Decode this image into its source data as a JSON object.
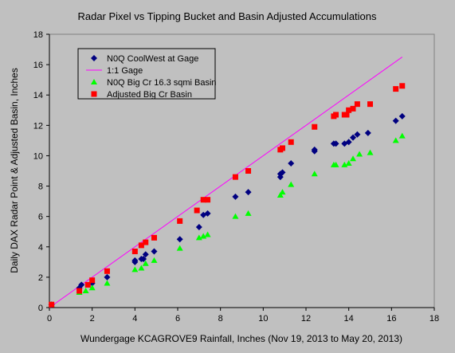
{
  "chart_data": {
    "type": "scatter",
    "title": "Radar Pixel vs Tipping Bucket and Basin Adjusted Accumulations",
    "xlabel": "Wundergage KCAGROVE9 Rainfall, Inches (Nov 19, 2013 to May 20, 2013)",
    "ylabel": "Daily DAX Radar Point & Adjusted Basin, Inches",
    "xlim": [
      0,
      18
    ],
    "ylim": [
      0,
      18
    ],
    "xticks": [
      "0",
      "2",
      "4",
      "6",
      "8",
      "10",
      "12",
      "14",
      "16",
      "18"
    ],
    "yticks": [
      "0",
      "2",
      "4",
      "6",
      "8",
      "10",
      "12",
      "14",
      "16",
      "18"
    ],
    "grid": false,
    "legend_position": "top-left",
    "series": [
      {
        "name": "N0Q CoolWest at Gage",
        "marker": "diamond",
        "color": "#000080",
        "x": [
          0.1,
          1.4,
          1.5,
          2.0,
          2.7,
          4.0,
          4.0,
          4.3,
          4.4,
          4.5,
          4.9,
          6.1,
          7.0,
          7.2,
          7.4,
          8.7,
          9.3,
          10.8,
          10.8,
          10.9,
          11.3,
          12.4,
          12.4,
          13.3,
          13.4,
          13.8,
          14.0,
          14.2,
          14.4,
          14.9,
          16.2,
          16.5
        ],
        "y": [
          0.2,
          1.3,
          1.5,
          1.6,
          2.0,
          3.0,
          3.1,
          3.2,
          3.2,
          3.5,
          3.7,
          4.5,
          5.3,
          6.1,
          6.2,
          7.3,
          7.6,
          8.6,
          8.8,
          8.9,
          9.5,
          10.3,
          10.4,
          10.8,
          10.8,
          10.8,
          10.9,
          11.2,
          11.4,
          11.5,
          12.3,
          12.6
        ]
      },
      {
        "name": "1:1 Gage",
        "type": "line",
        "color": "#ff00ff",
        "x": [
          0,
          16.5
        ],
        "y": [
          0,
          16.5
        ]
      },
      {
        "name": "N0Q Big Cr 16.3 sqmi Basin",
        "marker": "triangle",
        "color": "#00ff00",
        "x": [
          0.1,
          1.4,
          1.7,
          2.0,
          2.7,
          4.0,
          4.3,
          4.5,
          4.9,
          6.1,
          7.0,
          7.2,
          7.4,
          8.7,
          9.3,
          10.8,
          10.9,
          11.3,
          12.4,
          13.3,
          13.4,
          13.8,
          14.0,
          14.2,
          14.5,
          15.0,
          16.2,
          16.5
        ],
        "y": [
          0.2,
          1.0,
          1.1,
          1.3,
          1.6,
          2.5,
          2.6,
          2.9,
          3.1,
          3.9,
          4.6,
          4.7,
          4.8,
          6.0,
          6.2,
          7.4,
          7.6,
          8.1,
          8.8,
          9.4,
          9.4,
          9.4,
          9.5,
          9.8,
          10.1,
          10.2,
          11.0,
          11.3
        ]
      },
      {
        "name": "Adjusted Big Cr Basin",
        "marker": "square",
        "color": "#ff0000",
        "x": [
          0.1,
          1.4,
          1.8,
          2.0,
          2.7,
          4.0,
          4.3,
          4.5,
          4.9,
          6.1,
          6.9,
          7.2,
          7.4,
          8.7,
          9.3,
          10.8,
          10.9,
          11.3,
          12.4,
          13.3,
          13.4,
          13.8,
          13.9,
          14.0,
          14.2,
          14.4,
          15.0,
          16.2,
          16.5
        ],
        "y": [
          0.2,
          1.1,
          1.5,
          1.8,
          2.4,
          3.7,
          4.1,
          4.3,
          4.6,
          5.7,
          6.4,
          7.1,
          7.1,
          8.6,
          9.0,
          10.4,
          10.5,
          10.9,
          11.9,
          12.6,
          12.7,
          12.7,
          12.7,
          13.0,
          13.1,
          13.4,
          13.4,
          14.4,
          14.6
        ]
      }
    ]
  }
}
